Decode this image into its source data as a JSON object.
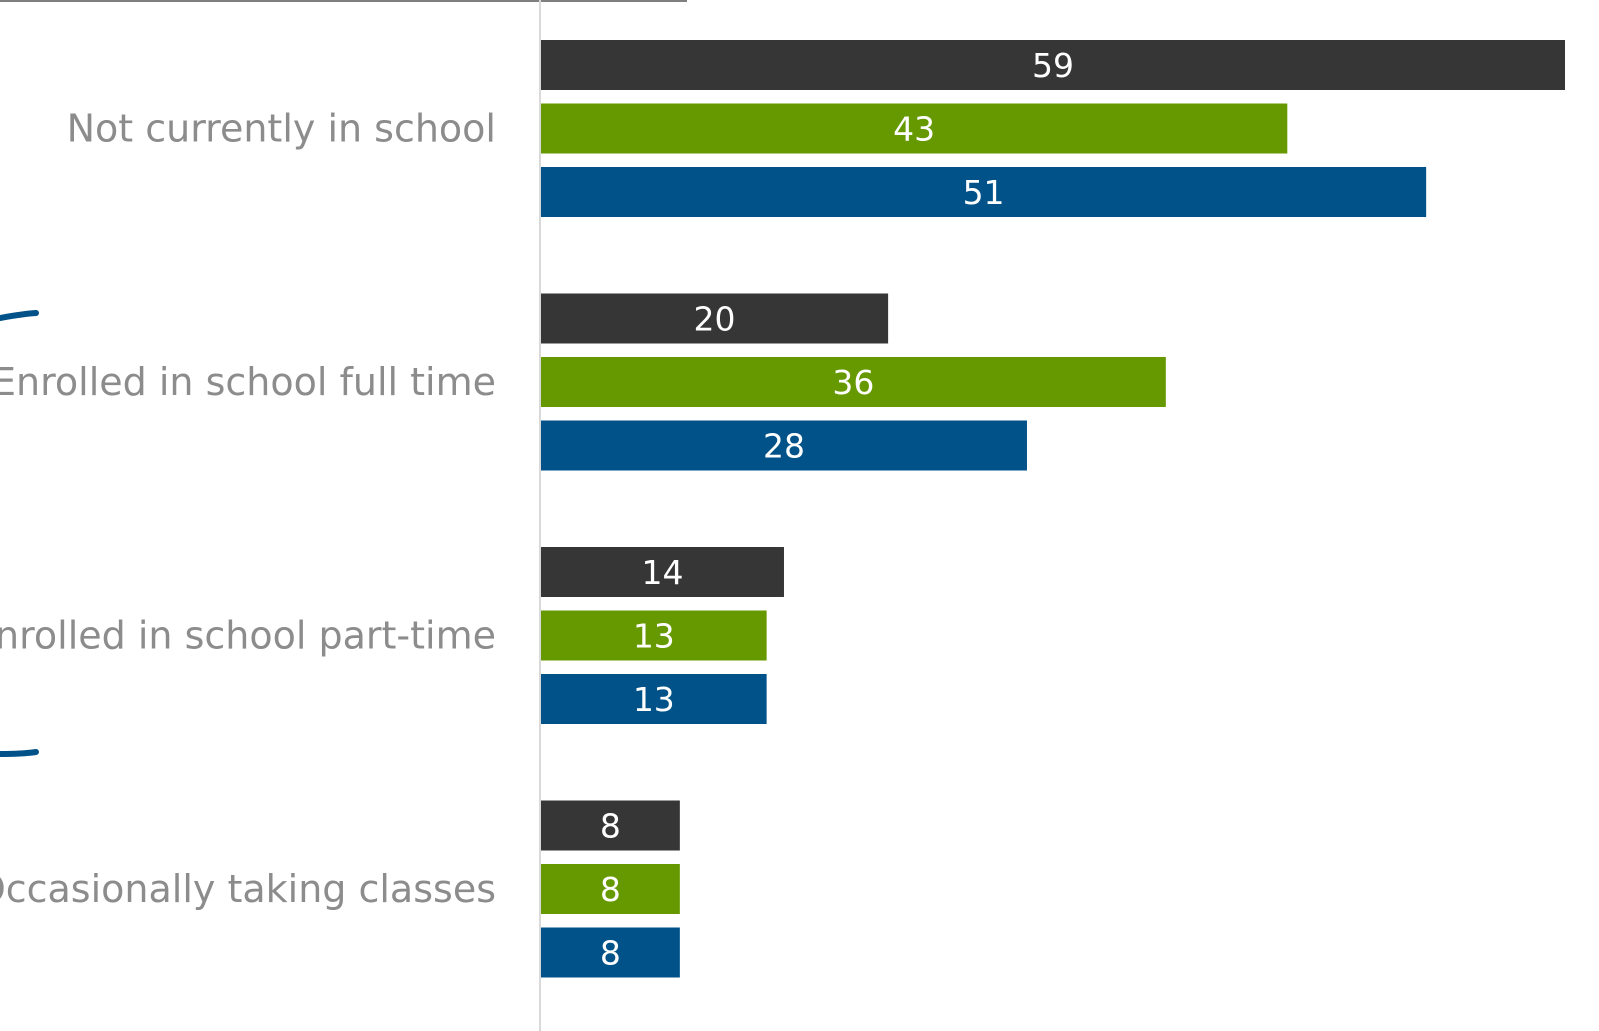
{
  "chart_data": {
    "type": "bar",
    "orientation": "horizontal",
    "title": "",
    "xlabel": "",
    "ylabel": "",
    "categories": [
      "Not currently in school",
      "Enrolled in school full time",
      "Enrolled in school part-time",
      "Occasionally taking classes"
    ],
    "series": [
      {
        "color": "#363636",
        "values": [
          59,
          20,
          14,
          8
        ]
      },
      {
        "color": "#669900",
        "values": [
          43,
          36,
          13,
          8
        ]
      },
      {
        "color": "#005289",
        "values": [
          51,
          28,
          13,
          8
        ]
      }
    ],
    "xlim": [
      0,
      59
    ],
    "grid": false,
    "legend": "none",
    "data_labels": "inside-center"
  },
  "decorations": {
    "bracket_color": "#005289",
    "axis_line_color": "#d9d9d9",
    "top_rule_color": "#7f7f7f"
  }
}
